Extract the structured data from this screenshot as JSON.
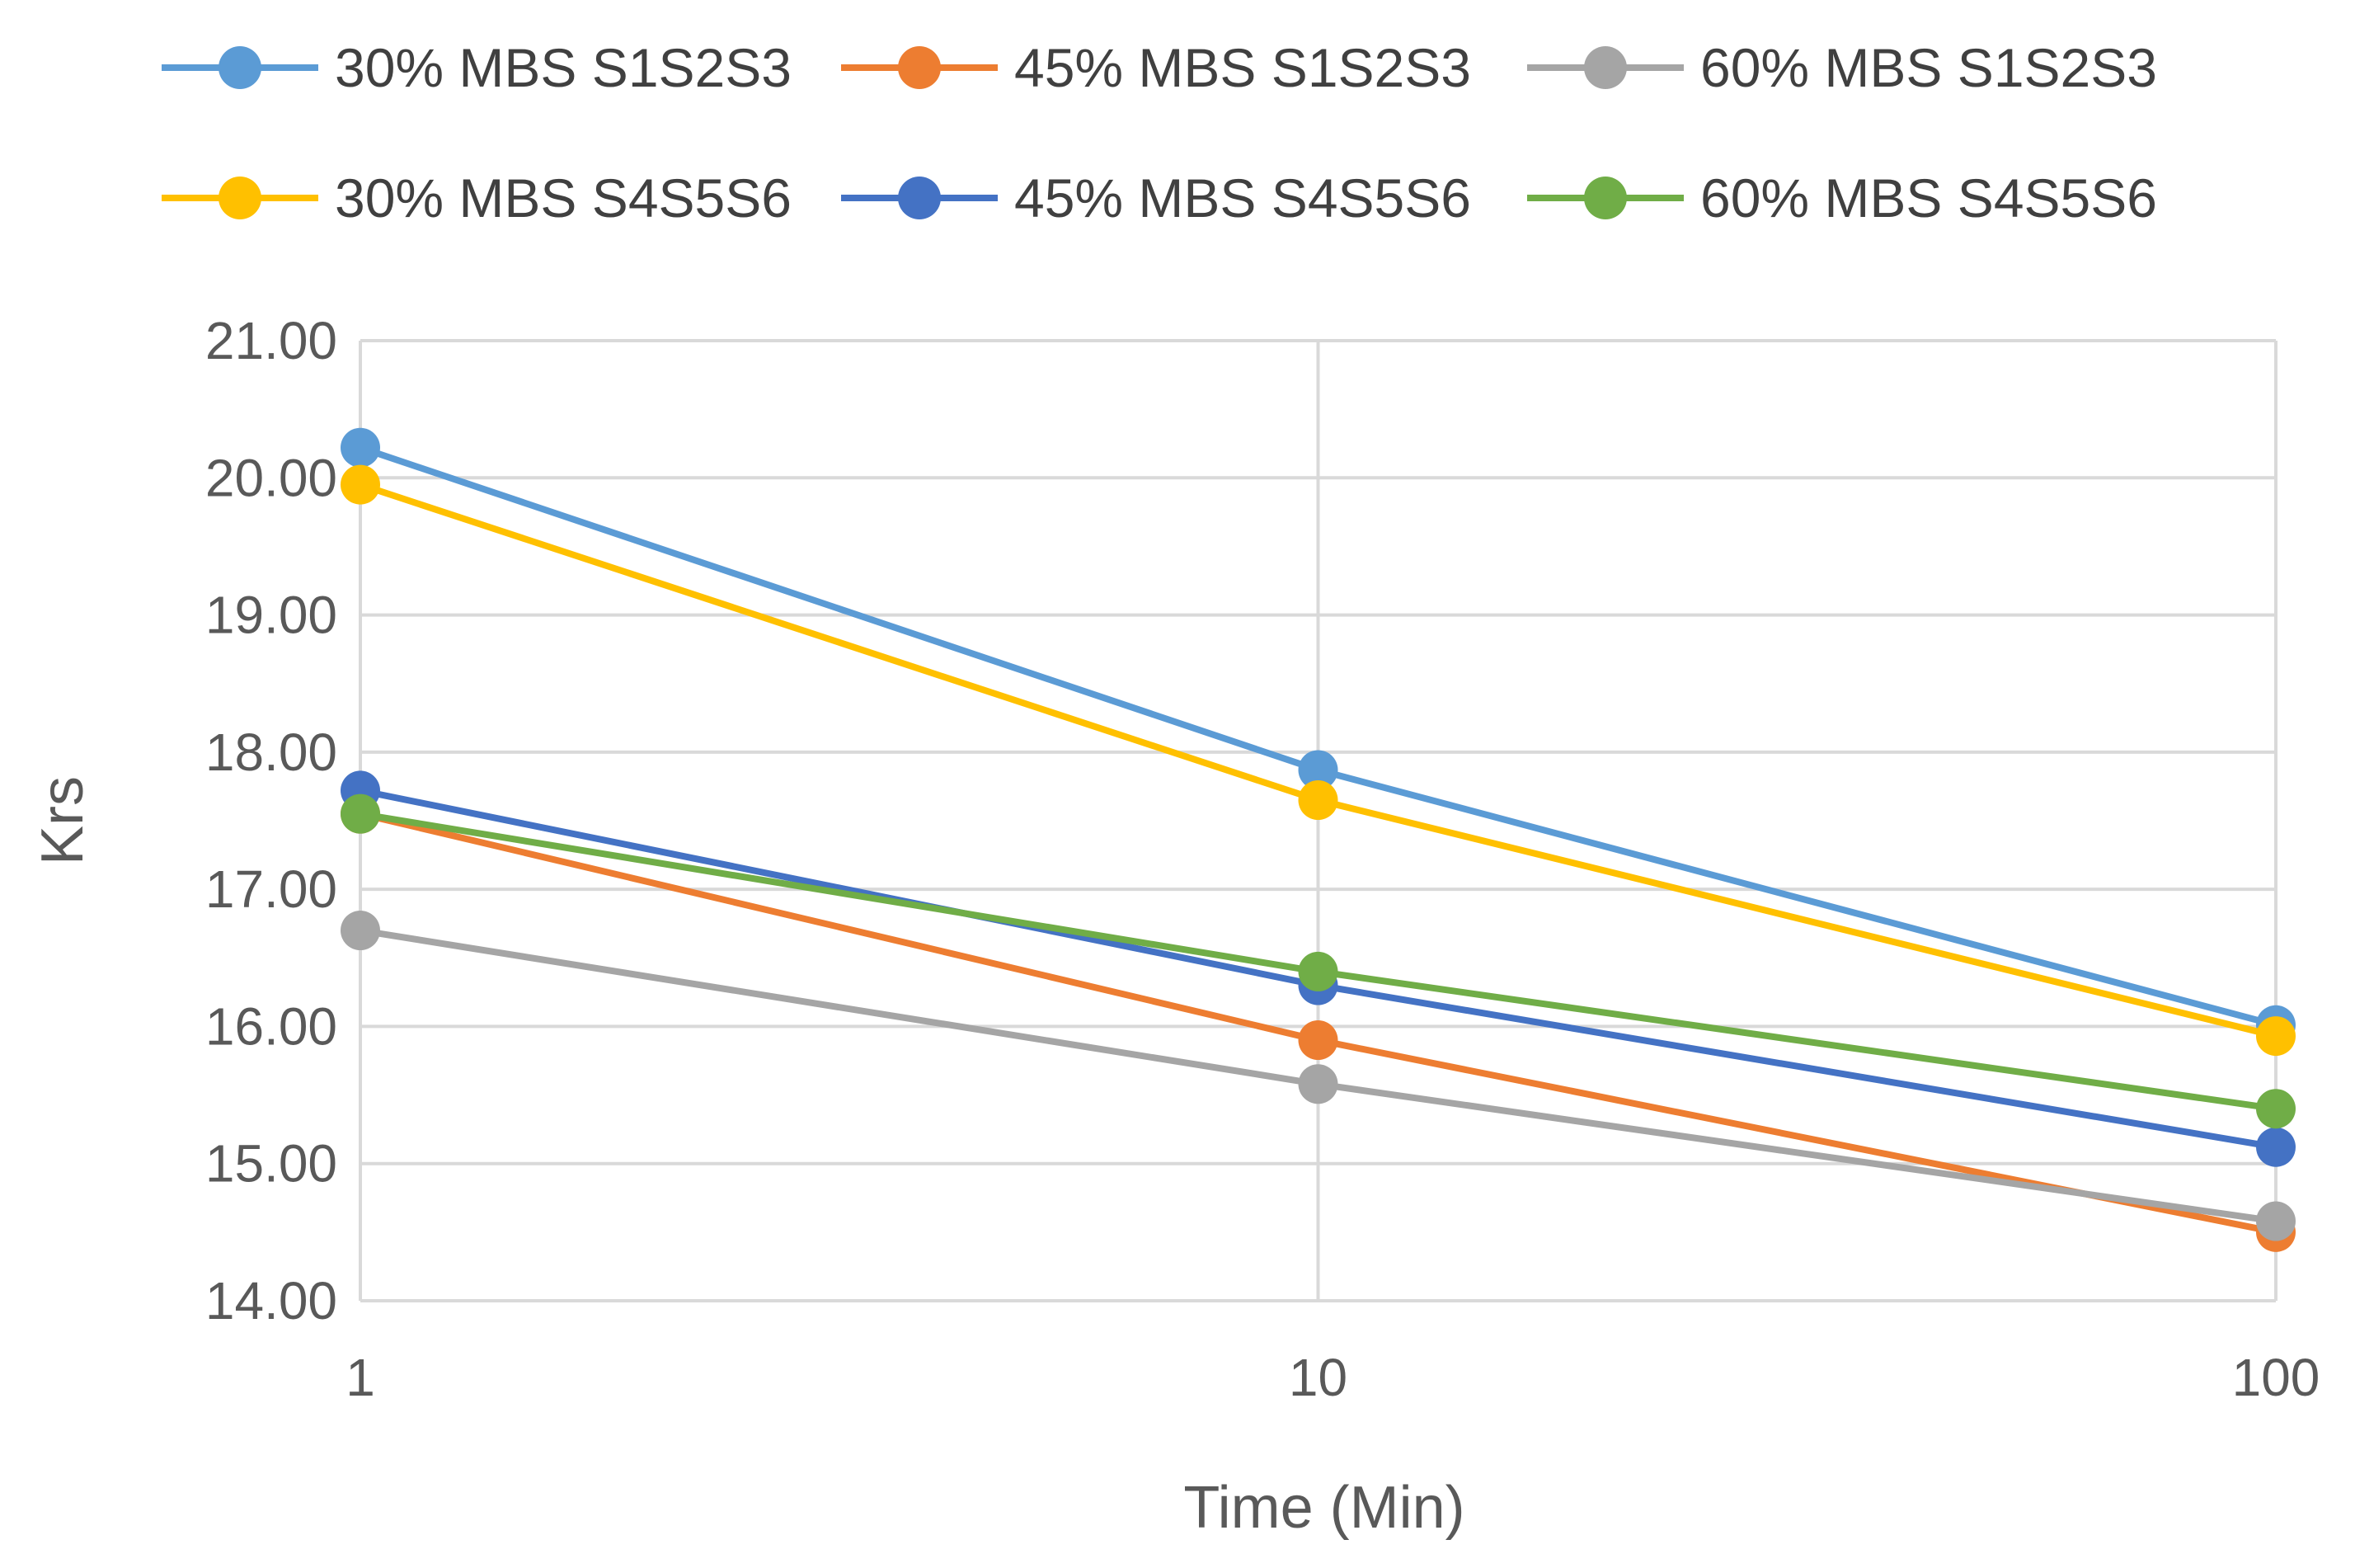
{
  "chart_data": {
    "type": "line",
    "xscale": "log",
    "x": [
      1,
      10,
      100
    ],
    "x_tick_labels": [
      "1",
      "10",
      "100"
    ],
    "xlim": [
      1,
      100
    ],
    "ylim": [
      14,
      21
    ],
    "y_tick_labels": [
      "14.00",
      "15.00",
      "16.00",
      "17.00",
      "18.00",
      "19.00",
      "20.00",
      "21.00"
    ],
    "xlabel": "Time (Min)",
    "ylabel": "Krs",
    "grid": true,
    "legend_position": "top",
    "series": [
      {
        "name": "30% MBS S1S2S3",
        "color": "#5B9BD5",
        "values": [
          20.22,
          17.87,
          16.01
        ]
      },
      {
        "name": "45% MBS S1S2S3",
        "color": "#ED7D31",
        "values": [
          17.55,
          15.9,
          14.5
        ]
      },
      {
        "name": "60% MBS S1S2S3",
        "color": "#A5A5A5",
        "values": [
          16.7,
          15.58,
          14.58
        ]
      },
      {
        "name": "30% MBS S4S5S6",
        "color": "#FFC000",
        "values": [
          19.95,
          17.65,
          15.93
        ]
      },
      {
        "name": "45% MBS S4S5S6",
        "color": "#4472C4",
        "values": [
          17.72,
          16.3,
          15.12
        ]
      },
      {
        "name": "60% MBS S4S5S6",
        "color": "#70AD47",
        "values": [
          17.55,
          16.4,
          15.4
        ]
      }
    ]
  }
}
